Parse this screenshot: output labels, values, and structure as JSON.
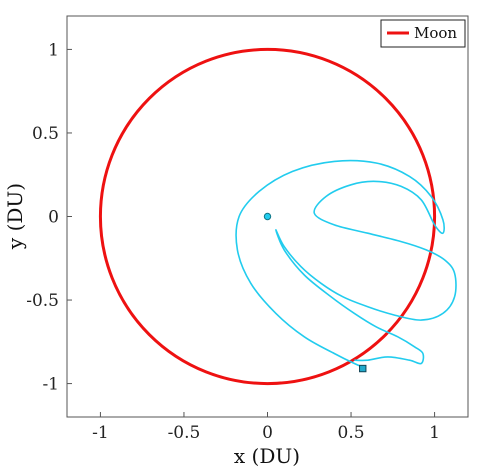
{
  "chart_data": {
    "type": "line",
    "title": "",
    "xlabel": "x (DU)",
    "ylabel": "y (DU)",
    "xlim": [
      -1.2,
      1.2
    ],
    "ylim": [
      -1.2,
      1.2
    ],
    "xticks": [
      -1,
      -0.5,
      0,
      0.5,
      1
    ],
    "yticks": [
      -1,
      -0.5,
      0,
      0.5,
      1
    ],
    "xtick_labels": [
      "-1",
      "-0.5",
      "0",
      "0.5",
      "1"
    ],
    "ytick_labels": [
      "-1",
      "-0.5",
      "0",
      "0.5",
      "1"
    ],
    "grid": false,
    "legend": {
      "placement": "top-right",
      "entries": [
        "Moon"
      ]
    },
    "colors": {
      "moon": "#ee1111",
      "trajectory": "#22ccee",
      "end_marker": "#22aacc"
    },
    "series": [
      {
        "name": "Moon",
        "shape": "circle",
        "center": [
          0,
          0
        ],
        "radius": 1.0
      },
      {
        "shape": "trajectory",
        "x": [
          0.57,
          0.52,
          0.4,
          0.22,
          0.05,
          -0.1,
          -0.18,
          -0.17,
          -0.05,
          0.15,
          0.4,
          0.65,
          0.85,
          0.98,
          1.05,
          1.05,
          1.0,
          0.92,
          0.8,
          0.65,
          0.5,
          0.35,
          0.28,
          0.4,
          0.6,
          0.8,
          0.95,
          1.06,
          1.12,
          1.12,
          1.05,
          0.92,
          0.76,
          0.6,
          0.45,
          0.32,
          0.2,
          0.1,
          0.05,
          0.1,
          0.22,
          0.38,
          0.52,
          0.65,
          0.78,
          0.88,
          0.93,
          0.92,
          0.85,
          0.72,
          0.6,
          0.52
        ],
        "y": [
          -0.9,
          -0.88,
          -0.82,
          -0.72,
          -0.58,
          -0.4,
          -0.2,
          0.0,
          0.15,
          0.27,
          0.33,
          0.32,
          0.24,
          0.12,
          -0.02,
          -0.1,
          -0.05,
          0.1,
          0.18,
          0.21,
          0.19,
          0.12,
          0.02,
          -0.05,
          -0.1,
          -0.15,
          -0.2,
          -0.26,
          -0.34,
          -0.48,
          -0.58,
          -0.62,
          -0.59,
          -0.54,
          -0.48,
          -0.4,
          -0.3,
          -0.18,
          -0.08,
          -0.2,
          -0.35,
          -0.48,
          -0.58,
          -0.66,
          -0.72,
          -0.78,
          -0.82,
          -0.88,
          -0.86,
          -0.84,
          -0.86,
          -0.86
        ]
      }
    ],
    "markers": [
      {
        "kind": "start",
        "shape": "circle",
        "x": 0.0,
        "y": 0.0
      },
      {
        "kind": "end",
        "shape": "square",
        "x": 0.57,
        "y": -0.91
      }
    ]
  }
}
